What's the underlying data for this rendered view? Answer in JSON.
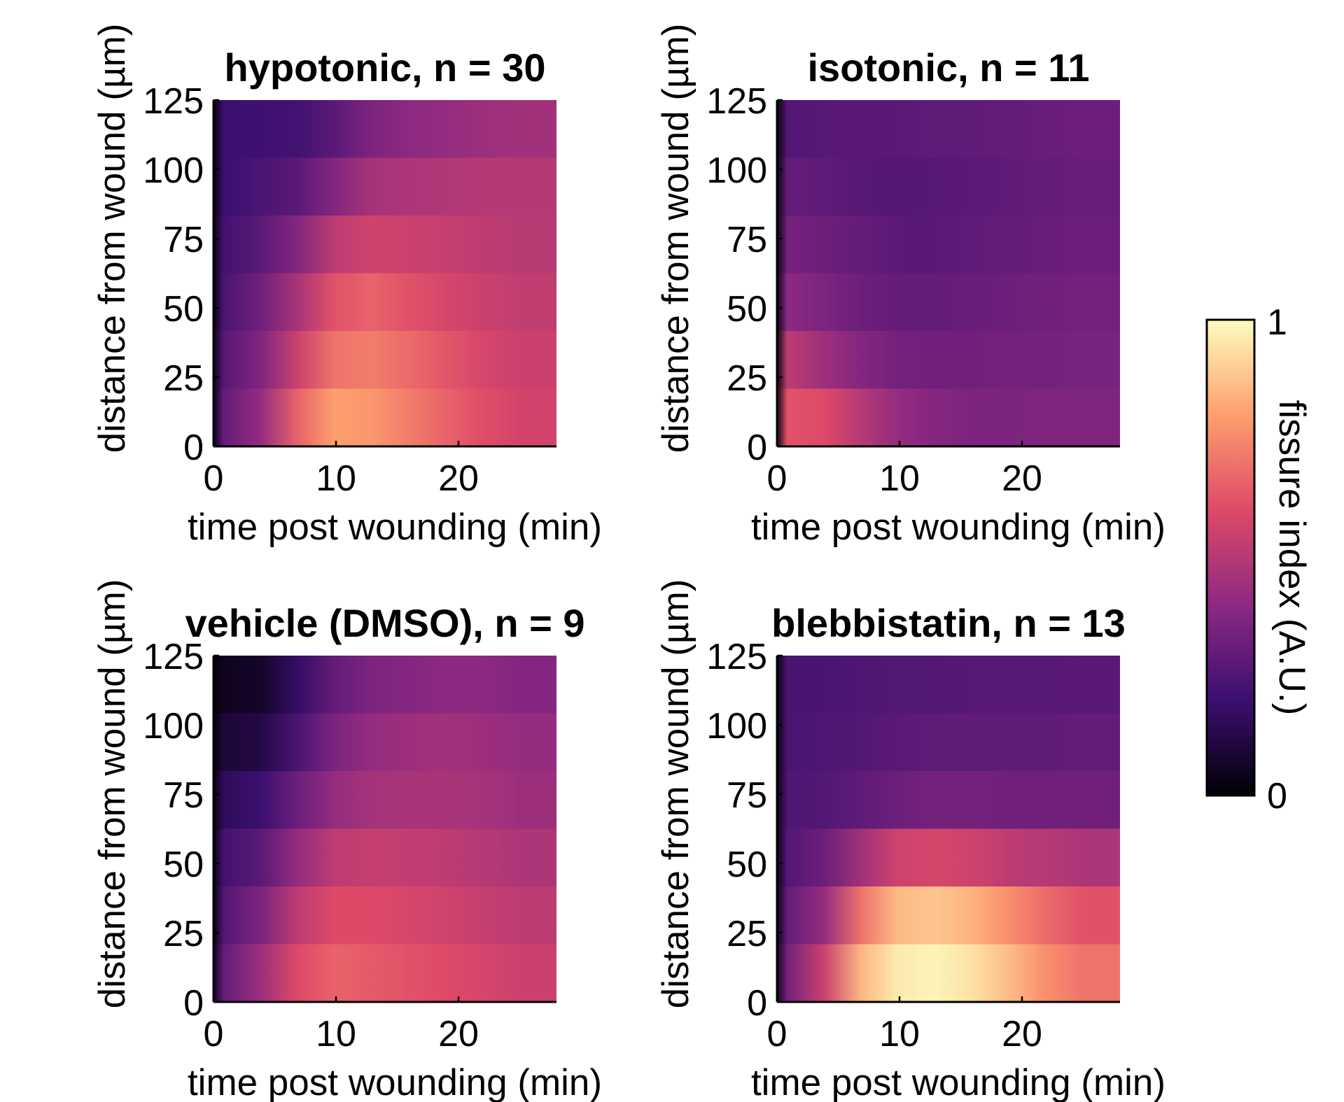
{
  "chart_data": [
    {
      "type": "heatmap",
      "title": "hypotonic, n = 30",
      "xlabel": "time post wounding (min)",
      "ylabel": "distance from wound (µm)",
      "xlim": [
        0,
        28
      ],
      "ylim": [
        0,
        125
      ],
      "xticks": [
        "0",
        "10",
        "20"
      ],
      "yticks": [
        "0",
        "25",
        "50",
        "75",
        "100",
        "125"
      ],
      "values": [
        [
          0.02,
          0.2,
          0.21,
          0.22,
          0.28,
          0.36,
          0.4,
          0.42,
          0.44,
          0.45
        ],
        [
          0.02,
          0.2,
          0.24,
          0.28,
          0.38,
          0.46,
          0.48,
          0.49,
          0.5,
          0.5
        ],
        [
          0.03,
          0.22,
          0.28,
          0.38,
          0.52,
          0.56,
          0.55,
          0.54,
          0.52,
          0.51
        ],
        [
          0.03,
          0.24,
          0.33,
          0.47,
          0.62,
          0.66,
          0.62,
          0.58,
          0.55,
          0.53
        ],
        [
          0.04,
          0.27,
          0.37,
          0.55,
          0.7,
          0.72,
          0.68,
          0.63,
          0.58,
          0.55
        ],
        [
          0.04,
          0.3,
          0.42,
          0.66,
          0.8,
          0.78,
          0.72,
          0.66,
          0.61,
          0.57
        ]
      ]
    },
    {
      "type": "heatmap",
      "title": "isotonic, n = 11",
      "xlabel": "time post wounding (min)",
      "ylabel": "distance from wound (µm)",
      "xlim": [
        0,
        28
      ],
      "ylim": [
        0,
        125
      ],
      "xticks": [
        "0",
        "10",
        "20"
      ],
      "yticks": [
        "0",
        "25",
        "50",
        "75",
        "100",
        "125"
      ],
      "values": [
        [
          0.02,
          0.26,
          0.27,
          0.28,
          0.28,
          0.29,
          0.29,
          0.3,
          0.31,
          0.32
        ],
        [
          0.02,
          0.3,
          0.29,
          0.27,
          0.26,
          0.27,
          0.28,
          0.29,
          0.3,
          0.31
        ],
        [
          0.02,
          0.34,
          0.32,
          0.3,
          0.28,
          0.28,
          0.29,
          0.3,
          0.31,
          0.32
        ],
        [
          0.03,
          0.4,
          0.36,
          0.32,
          0.3,
          0.3,
          0.31,
          0.32,
          0.33,
          0.34
        ],
        [
          0.03,
          0.52,
          0.44,
          0.38,
          0.34,
          0.33,
          0.33,
          0.34,
          0.34,
          0.35
        ],
        [
          0.04,
          0.62,
          0.6,
          0.5,
          0.42,
          0.38,
          0.36,
          0.36,
          0.37,
          0.37
        ]
      ]
    },
    {
      "type": "heatmap",
      "title": "vehicle (DMSO), n = 9",
      "xlabel": "time post wounding (min)",
      "ylabel": "distance from wound (µm)",
      "xlim": [
        0,
        28
      ],
      "ylim": [
        0,
        125
      ],
      "xticks": [
        "0",
        "10",
        "20"
      ],
      "yticks": [
        "0",
        "25",
        "50",
        "75",
        "100",
        "125"
      ],
      "values": [
        [
          0.01,
          0.05,
          0.07,
          0.18,
          0.3,
          0.36,
          0.38,
          0.4,
          0.4,
          0.38
        ],
        [
          0.01,
          0.1,
          0.12,
          0.24,
          0.36,
          0.42,
          0.44,
          0.45,
          0.44,
          0.42
        ],
        [
          0.02,
          0.16,
          0.2,
          0.32,
          0.42,
          0.46,
          0.47,
          0.47,
          0.46,
          0.44
        ],
        [
          0.02,
          0.22,
          0.28,
          0.42,
          0.52,
          0.54,
          0.53,
          0.52,
          0.5,
          0.48
        ],
        [
          0.03,
          0.26,
          0.36,
          0.52,
          0.6,
          0.6,
          0.58,
          0.56,
          0.54,
          0.52
        ],
        [
          0.04,
          0.3,
          0.44,
          0.6,
          0.66,
          0.64,
          0.62,
          0.6,
          0.58,
          0.55
        ]
      ]
    },
    {
      "type": "heatmap",
      "title": "blebbistatin, n = 13",
      "xlabel": "time post wounding (min)",
      "ylabel": "distance from wound (µm)",
      "xlim": [
        0,
        28
      ],
      "ylim": [
        0,
        125
      ],
      "xticks": [
        "0",
        "10",
        "20"
      ],
      "yticks": [
        "0",
        "25",
        "50",
        "75",
        "100",
        "125"
      ],
      "values": [
        [
          0.02,
          0.24,
          0.24,
          0.25,
          0.26,
          0.26,
          0.27,
          0.27,
          0.27,
          0.28
        ],
        [
          0.02,
          0.24,
          0.25,
          0.26,
          0.28,
          0.29,
          0.29,
          0.29,
          0.29,
          0.3
        ],
        [
          0.03,
          0.25,
          0.26,
          0.29,
          0.32,
          0.34,
          0.34,
          0.33,
          0.33,
          0.33
        ],
        [
          0.03,
          0.26,
          0.32,
          0.45,
          0.56,
          0.58,
          0.56,
          0.52,
          0.5,
          0.48
        ],
        [
          0.04,
          0.3,
          0.42,
          0.7,
          0.86,
          0.88,
          0.84,
          0.76,
          0.68,
          0.62
        ],
        [
          0.05,
          0.34,
          0.55,
          0.85,
          0.96,
          0.98,
          0.94,
          0.86,
          0.76,
          0.7
        ]
      ]
    }
  ],
  "colorbar": {
    "label": "fissure index (A.U.)",
    "min_label": "0",
    "max_label": "1",
    "min": 0,
    "max": 1,
    "colormap": "magma",
    "colors": [
      "#000004",
      "#3b0f70",
      "#8c2981",
      "#de4968",
      "#fe9f6d",
      "#fcfdbf"
    ]
  }
}
